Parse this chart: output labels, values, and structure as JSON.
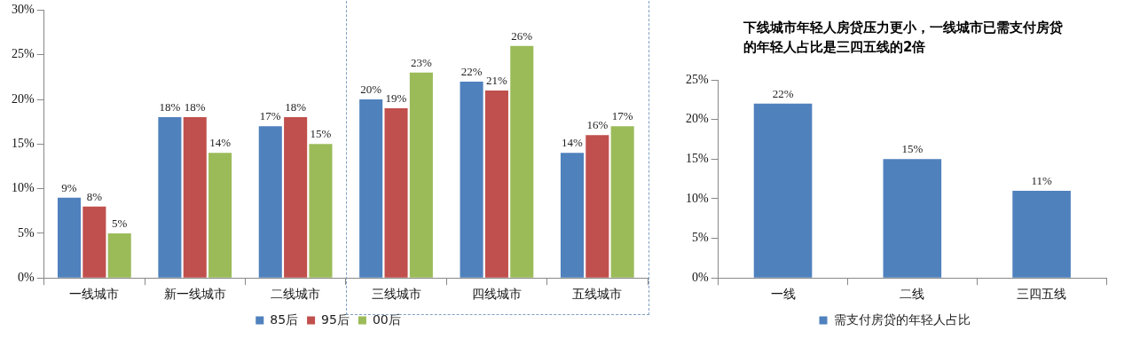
{
  "chart_data": [
    {
      "type": "bar",
      "categories": [
        "一线城市",
        "新一线城市",
        "二线城市",
        "三线城市",
        "四线城市",
        "五线城市"
      ],
      "series": [
        {
          "name": "85后",
          "color": "#4f81bd",
          "values": [
            9,
            18,
            17,
            20,
            22,
            14
          ],
          "value_labels": [
            "9%",
            "18%",
            "17%",
            "20%",
            "22%",
            "14%"
          ]
        },
        {
          "name": "95后",
          "color": "#c0504d",
          "values": [
            8,
            18,
            18,
            19,
            21,
            16
          ],
          "value_labels": [
            "8%",
            "18%",
            "18%",
            "19%",
            "21%",
            "16%"
          ]
        },
        {
          "name": "00后",
          "color": "#9bbb59",
          "values": [
            5,
            14,
            15,
            23,
            26,
            17
          ],
          "value_labels": [
            "5%",
            "14%",
            "15%",
            "23%",
            "26%",
            "17%"
          ]
        }
      ],
      "ylim": [
        0,
        30
      ],
      "yticks": [
        {
          "value": 0,
          "label": "0%"
        },
        {
          "value": 5,
          "label": "5%"
        },
        {
          "value": 10,
          "label": "10%"
        },
        {
          "value": 15,
          "label": "15%"
        },
        {
          "value": 20,
          "label": "20%"
        },
        {
          "value": 25,
          "label": "25%"
        },
        {
          "value": 30,
          "label": "30%"
        }
      ],
      "grid": false,
      "legend": "bottom"
    },
    {
      "type": "bar",
      "title": "下线城市年轻人房贷压力更小，一线城市已需支付房贷的年轻人占比是三四五线的2倍",
      "categories": [
        "一线",
        "二线",
        "三四五线"
      ],
      "series": [
        {
          "name": "需支付房贷的年轻人占比",
          "color": "#4f81bd",
          "values": [
            22,
            15,
            11
          ],
          "value_labels": [
            "22%",
            "15%",
            "11%"
          ]
        }
      ],
      "ylim": [
        0,
        25
      ],
      "yticks": [
        {
          "value": 0,
          "label": "0%"
        },
        {
          "value": 5,
          "label": "5%"
        },
        {
          "value": 10,
          "label": "10%"
        },
        {
          "value": 15,
          "label": "15%"
        },
        {
          "value": 20,
          "label": "20%"
        },
        {
          "value": 25,
          "label": "25%"
        }
      ],
      "grid": false,
      "legend": "bottom"
    }
  ]
}
